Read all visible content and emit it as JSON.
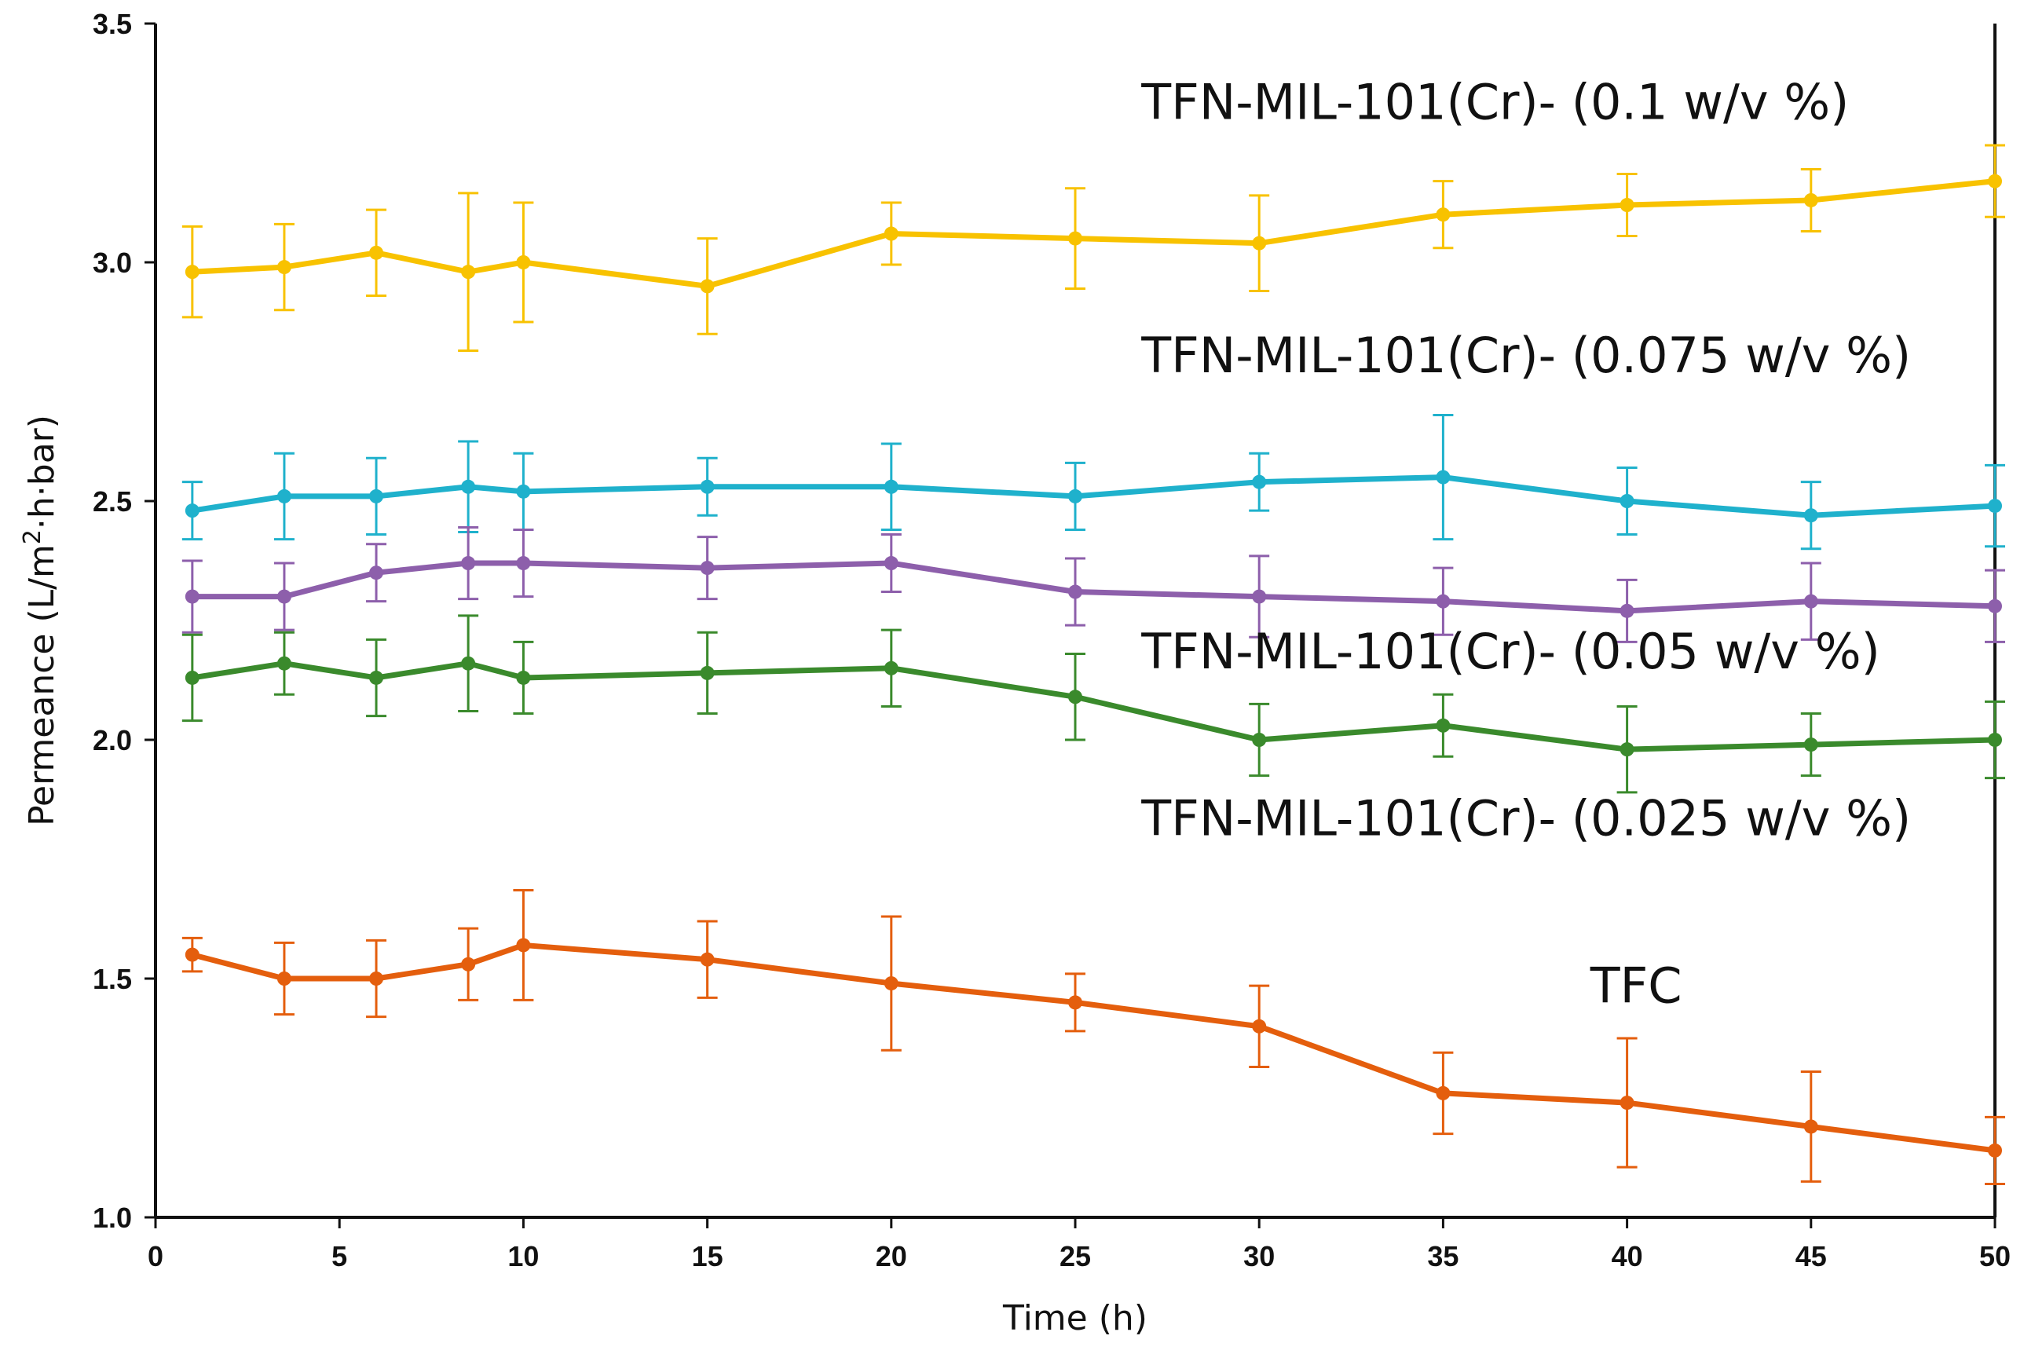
{
  "chart_data": {
    "type": "line",
    "title": "",
    "xlabel": "Time (h)",
    "ylabel_prefix": "Permeance (L/m",
    "ylabel_sup": "2",
    "ylabel_suffix": "·h·bar)",
    "xlim": [
      0,
      50
    ],
    "ylim": [
      1.0,
      3.5
    ],
    "xticks": [
      0,
      5,
      10,
      15,
      20,
      25,
      30,
      35,
      40,
      45,
      50
    ],
    "xtick_labels": [
      "0",
      "5",
      "10",
      "15",
      "20",
      "25",
      "30",
      "35",
      "40",
      "45",
      "50"
    ],
    "yticks": [
      1.0,
      1.5,
      2.0,
      2.5,
      3.0,
      3.5
    ],
    "ytick_labels": [
      "1.0",
      "1.5",
      "2.0",
      "2.5",
      "3.0",
      "3.5"
    ],
    "grid": false,
    "x": [
      1,
      3.5,
      6,
      8.5,
      10,
      15,
      20,
      25,
      30,
      35,
      40,
      45,
      50
    ],
    "series": [
      {
        "name": "TFN-MIL-101(Cr)- (0.1 w/v %)",
        "color": "#f8c200",
        "values": [
          2.98,
          2.99,
          3.02,
          2.98,
          3.0,
          2.95,
          3.06,
          3.05,
          3.04,
          3.1,
          3.12,
          3.13,
          3.17
        ],
        "errors": [
          0.095,
          0.09,
          0.09,
          0.165,
          0.125,
          0.1,
          0.065,
          0.105,
          0.1,
          0.07,
          0.065,
          0.065,
          0.075
        ]
      },
      {
        "name": "TFN-MIL-101(Cr)- (0.075 w/v %)",
        "color": "#1fb1cc",
        "values": [
          2.48,
          2.51,
          2.51,
          2.53,
          2.52,
          2.53,
          2.53,
          2.51,
          2.54,
          2.55,
          2.5,
          2.47,
          2.49
        ],
        "errors": [
          0.06,
          0.09,
          0.08,
          0.095,
          0.08,
          0.06,
          0.09,
          0.07,
          0.06,
          0.13,
          0.07,
          0.07,
          0.085
        ]
      },
      {
        "name": "TFN-MIL-101(Cr)- (0.05 w/v %)",
        "color": "#8d5fab",
        "values": [
          2.3,
          2.3,
          2.35,
          2.37,
          2.37,
          2.36,
          2.37,
          2.31,
          2.3,
          2.29,
          2.27,
          2.29,
          2.28
        ],
        "errors": [
          0.075,
          0.07,
          0.06,
          0.075,
          0.07,
          0.065,
          0.06,
          0.07,
          0.085,
          0.07,
          0.065,
          0.08,
          0.075
        ]
      },
      {
        "name": "TFN-MIL-101(Cr)- (0.025 w/v %)",
        "color": "#3a8a2c",
        "values": [
          2.13,
          2.16,
          2.13,
          2.16,
          2.13,
          2.14,
          2.15,
          2.09,
          2.0,
          2.03,
          1.98,
          1.99,
          2.0
        ],
        "errors": [
          0.09,
          0.065,
          0.08,
          0.1,
          0.075,
          0.085,
          0.08,
          0.09,
          0.075,
          0.065,
          0.09,
          0.065,
          0.08
        ]
      },
      {
        "name": "TFC",
        "color": "#e45e0d",
        "values": [
          1.55,
          1.5,
          1.5,
          1.53,
          1.57,
          1.54,
          1.49,
          1.45,
          1.4,
          1.26,
          1.24,
          1.19,
          1.14
        ],
        "errors": [
          0.035,
          0.075,
          0.08,
          0.075,
          0.115,
          0.08,
          0.14,
          0.06,
          0.085,
          0.085,
          0.135,
          0.115,
          0.07
        ]
      }
    ],
    "labels": [
      {
        "text": "TFN-MIL-101(Cr)- (0.1 w/v %)",
        "x": 26.8,
        "y": 3.3
      },
      {
        "text": "TFN-MIL-101(Cr)- (0.075 w/v %)",
        "x": 26.8,
        "y": 2.77
      },
      {
        "text": "TFN-MIL-101(Cr)- (0.05 w/v %)",
        "x": 26.8,
        "y": 2.15
      },
      {
        "text": "TFN-MIL-101(Cr)- (0.025 w/v %)",
        "x": 26.8,
        "y": 1.8
      },
      {
        "text": "TFC",
        "x": 39.0,
        "y": 1.45
      }
    ]
  }
}
